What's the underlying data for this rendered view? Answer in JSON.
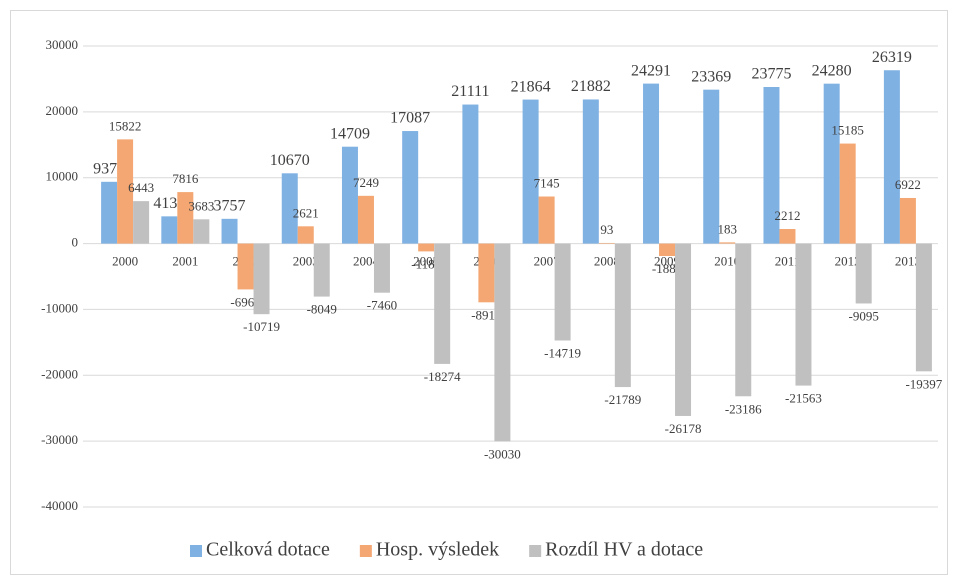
{
  "chart_data": {
    "type": "bar",
    "categories": [
      "2000",
      "2001",
      "2002",
      "2003",
      "2004",
      "2005",
      "2006",
      "2007",
      "2008",
      "2009",
      "2010",
      "2011",
      "2012",
      "2013"
    ],
    "series": [
      {
        "name": "Celková dotace",
        "color": "#7fb1e3",
        "values": [
          9379,
          4133,
          3757,
          10670,
          14709,
          17087,
          21111,
          21864,
          21882,
          24291,
          23369,
          23775,
          24280,
          26319
        ]
      },
      {
        "name": "Hosp. výsledek",
        "color": "#f4a772",
        "values": [
          15822,
          7816,
          -6962,
          2621,
          7249,
          -1187,
          -8919,
          7145,
          93,
          -1887,
          183,
          2212,
          15185,
          6922
        ]
      },
      {
        "name": "Rozdíl HV a dotace",
        "color": "#c0c0c0",
        "values": [
          6443,
          3683,
          -10719,
          -8049,
          -7460,
          -18274,
          -30030,
          -14719,
          -21789,
          -26178,
          -23186,
          -21563,
          -9095,
          -19397
        ]
      }
    ],
    "ylim": [
      -40000,
      30000
    ],
    "yticks": [
      -40000,
      -30000,
      -20000,
      -10000,
      0,
      10000,
      20000,
      30000
    ],
    "grid": true,
    "legend": "bottom"
  }
}
